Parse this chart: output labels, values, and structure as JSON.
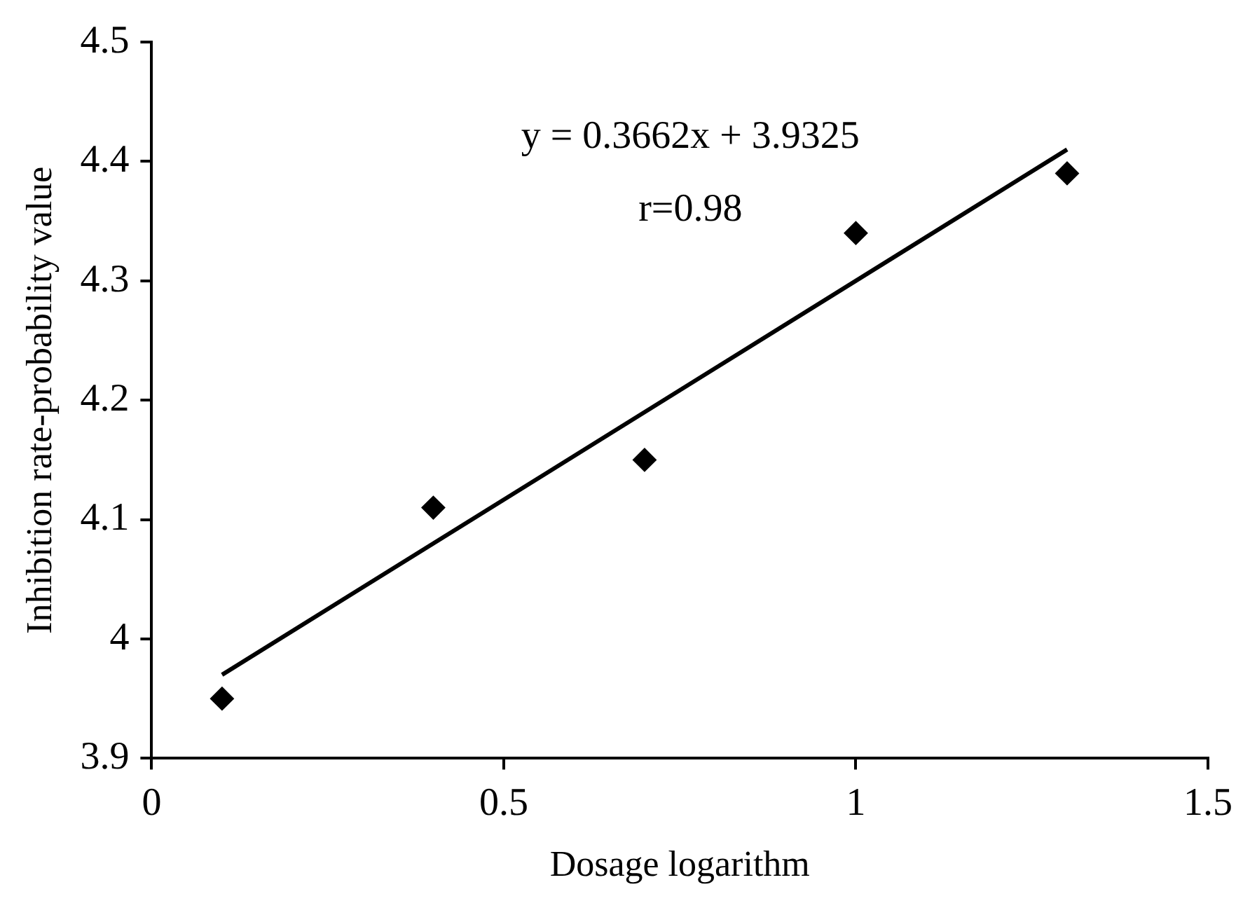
{
  "chart_data": {
    "type": "scatter",
    "xlabel": "Dosage logarithm",
    "ylabel": "Inhibition rate-probability value",
    "series": [
      {
        "type": "scatter",
        "color": "#000000",
        "marker": "diamond",
        "x": [
          0.1,
          0.4,
          0.7,
          1.0,
          1.3
        ],
        "values": [
          3.95,
          4.11,
          4.15,
          4.34,
          4.39
        ]
      },
      {
        "type": "line",
        "color": "#000000",
        "marker": "none",
        "x": [
          0.1,
          1.3
        ],
        "values": [
          3.97,
          4.41
        ]
      }
    ],
    "xlim": [
      0,
      1.5
    ],
    "xticks": [
      0,
      {
        "value": 0.5,
        "label": "0.5"
      },
      1,
      {
        "value": 1.5,
        "label": "1.5"
      }
    ],
    "ylim": [
      3.9,
      4.5
    ],
    "yticks": [
      {
        "value": 3.9,
        "label": "3.9"
      },
      4,
      {
        "value": 4.1,
        "label": "4.1"
      },
      {
        "value": 4.2,
        "label": "4.2"
      },
      {
        "value": 4.3,
        "label": "4.3"
      },
      {
        "value": 4.4,
        "label": "4.4"
      },
      {
        "value": 4.5,
        "label": "4.5"
      }
    ],
    "grid": false,
    "legend": false,
    "annotations": [
      "y = 0.3662x + 3.9325",
      "r=0.98"
    ]
  }
}
